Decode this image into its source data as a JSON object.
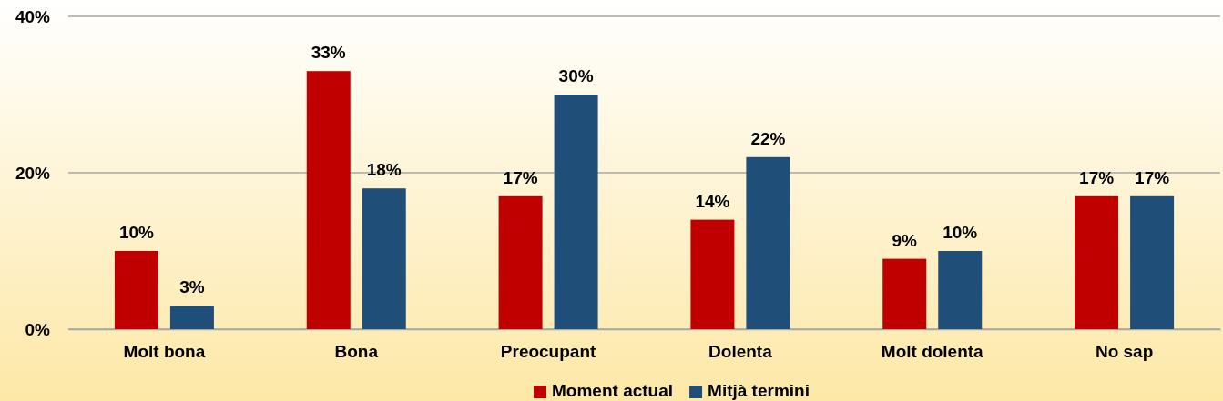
{
  "chart_data": {
    "type": "bar",
    "categories": [
      "Molt bona",
      "Bona",
      "Preocupant",
      "Dolenta",
      "Molt dolenta",
      "No sap"
    ],
    "series": [
      {
        "name": "Moment actual",
        "color": "#c00000",
        "values": [
          10,
          33,
          17,
          14,
          9,
          17
        ],
        "value_labels": [
          "10%",
          "33%",
          "17%",
          "14%",
          "9%",
          "17%"
        ]
      },
      {
        "name": "Mitjà termini",
        "color": "#1f4e79",
        "values": [
          3,
          18,
          30,
          22,
          10,
          17
        ],
        "value_labels": [
          "3%",
          "18%",
          "30%",
          "22%",
          "10%",
          "17%"
        ]
      }
    ],
    "ylim": [
      0,
      40
    ],
    "yticks": [
      {
        "value": 0,
        "label": "0%"
      },
      {
        "value": 20,
        "label": "20%"
      },
      {
        "value": 40,
        "label": "40%"
      }
    ],
    "grid": "y",
    "legend": "bottom"
  }
}
